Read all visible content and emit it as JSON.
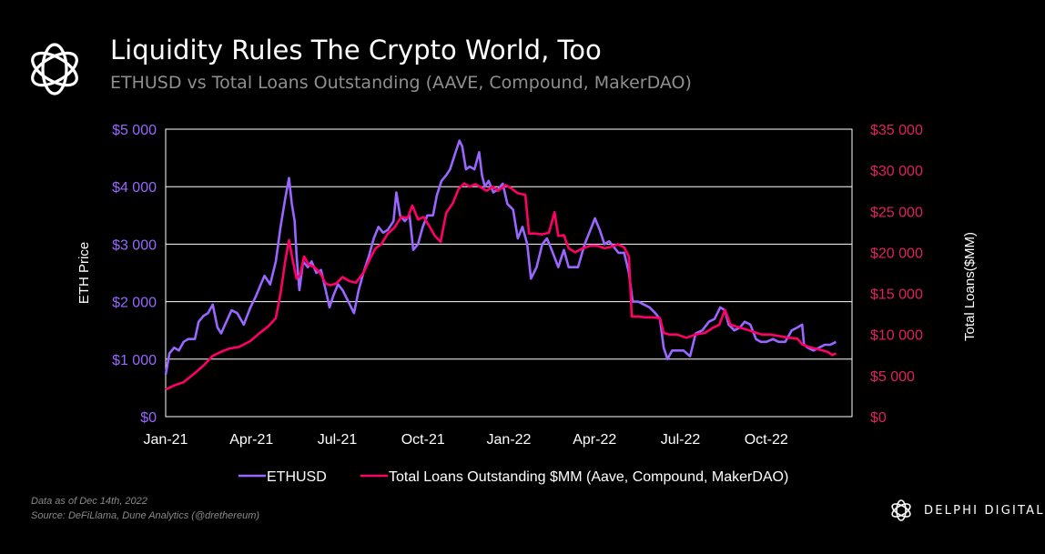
{
  "header": {
    "title": "Liquidity Rules The Crypto World, Too",
    "subtitle": "ETHUSD vs Total Loans Outstanding (AAVE, Compound, MakerDAO)"
  },
  "footer": {
    "note1": "Data as of Dec 14th, 2022",
    "note2": "Source: DeFiLlama,  Dune Analytics (@drethereum)",
    "brand": "DELPHI DIGITAL",
    "brand_icon": "delphi-knot-logo-icon"
  },
  "colors": {
    "ethusd": "#9966ff",
    "loans": "#ff0066",
    "left_axis": "#9966ff",
    "right_axis": "#e0205e",
    "grid": "#ffffff",
    "background": "#000000"
  },
  "chart_data": {
    "type": "line",
    "title": "",
    "xlabel": "",
    "ylabel": "ETH Price",
    "y2label": "Total Loans($MM)",
    "x_tick_labels": [
      "Jan-21",
      "Apr-21",
      "Jul-21",
      "Oct-21",
      "Jan-22",
      "Apr-22",
      "Jul-22",
      "Oct-22"
    ],
    "y_ticks": [
      "$0",
      "$1 000",
      "$2 000",
      "$3 000",
      "$4 000",
      "$5 000"
    ],
    "y2_ticks": [
      "$0",
      "$5 000",
      "$10 000",
      "$15 000",
      "$20 000",
      "$25 000",
      "$30 000",
      "$35 000"
    ],
    "ylim": [
      0,
      5000
    ],
    "y2lim": [
      0,
      35000
    ],
    "xlim": [
      "2021-01-01",
      "2022-12-31"
    ],
    "grid": true,
    "legend_position": "bottom",
    "series": [
      {
        "name": "ETHUSD",
        "axis": "left",
        "points": [
          [
            "2021-01-01",
            730
          ],
          [
            "2021-01-05",
            1100
          ],
          [
            "2021-01-10",
            1200
          ],
          [
            "2021-01-15",
            1150
          ],
          [
            "2021-01-20",
            1300
          ],
          [
            "2021-01-25",
            1350
          ],
          [
            "2021-02-01",
            1350
          ],
          [
            "2021-02-05",
            1650
          ],
          [
            "2021-02-10",
            1750
          ],
          [
            "2021-02-15",
            1800
          ],
          [
            "2021-02-20",
            1950
          ],
          [
            "2021-02-25",
            1550
          ],
          [
            "2021-03-01",
            1450
          ],
          [
            "2021-03-05",
            1600
          ],
          [
            "2021-03-12",
            1850
          ],
          [
            "2021-03-18",
            1800
          ],
          [
            "2021-03-25",
            1600
          ],
          [
            "2021-04-01",
            1900
          ],
          [
            "2021-04-07",
            2100
          ],
          [
            "2021-04-12",
            2300
          ],
          [
            "2021-04-16",
            2450
          ],
          [
            "2021-04-22",
            2300
          ],
          [
            "2021-04-28",
            2700
          ],
          [
            "2021-05-03",
            3300
          ],
          [
            "2021-05-08",
            3800
          ],
          [
            "2021-05-12",
            4150
          ],
          [
            "2021-05-15",
            3700
          ],
          [
            "2021-05-18",
            3400
          ],
          [
            "2021-05-20",
            2800
          ],
          [
            "2021-05-23",
            2200
          ],
          [
            "2021-05-27",
            2700
          ],
          [
            "2021-06-01",
            2600
          ],
          [
            "2021-06-05",
            2700
          ],
          [
            "2021-06-10",
            2500
          ],
          [
            "2021-06-15",
            2550
          ],
          [
            "2021-06-20",
            2200
          ],
          [
            "2021-06-24",
            1900
          ],
          [
            "2021-06-28",
            2100
          ],
          [
            "2021-07-03",
            2300
          ],
          [
            "2021-07-08",
            2200
          ],
          [
            "2021-07-14",
            2000
          ],
          [
            "2021-07-20",
            1800
          ],
          [
            "2021-07-25",
            2200
          ],
          [
            "2021-07-30",
            2500
          ],
          [
            "2021-08-05",
            2800
          ],
          [
            "2021-08-10",
            3100
          ],
          [
            "2021-08-15",
            3300
          ],
          [
            "2021-08-20",
            3200
          ],
          [
            "2021-08-25",
            3250
          ],
          [
            "2021-08-31",
            3400
          ],
          [
            "2021-09-03",
            3900
          ],
          [
            "2021-09-07",
            3500
          ],
          [
            "2021-09-12",
            3400
          ],
          [
            "2021-09-17",
            3500
          ],
          [
            "2021-09-21",
            2900
          ],
          [
            "2021-09-26",
            3000
          ],
          [
            "2021-10-01",
            3300
          ],
          [
            "2021-10-06",
            3500
          ],
          [
            "2021-10-12",
            3500
          ],
          [
            "2021-10-16",
            3850
          ],
          [
            "2021-10-21",
            4100
          ],
          [
            "2021-10-26",
            4200
          ],
          [
            "2021-10-30",
            4300
          ],
          [
            "2021-11-04",
            4550
          ],
          [
            "2021-11-09",
            4800
          ],
          [
            "2021-11-12",
            4700
          ],
          [
            "2021-11-16",
            4300
          ],
          [
            "2021-11-20",
            4350
          ],
          [
            "2021-11-25",
            4300
          ],
          [
            "2021-11-30",
            4600
          ],
          [
            "2021-12-03",
            4200
          ],
          [
            "2021-12-06",
            4000
          ],
          [
            "2021-12-10",
            4100
          ],
          [
            "2021-12-15",
            3900
          ],
          [
            "2021-12-20",
            3950
          ],
          [
            "2021-12-25",
            4050
          ],
          [
            "2021-12-30",
            3700
          ],
          [
            "2022-01-05",
            3600
          ],
          [
            "2022-01-10",
            3100
          ],
          [
            "2022-01-15",
            3300
          ],
          [
            "2022-01-20",
            3000
          ],
          [
            "2022-01-24",
            2400
          ],
          [
            "2022-01-30",
            2600
          ],
          [
            "2022-02-05",
            3000
          ],
          [
            "2022-02-10",
            3100
          ],
          [
            "2022-02-15",
            2900
          ],
          [
            "2022-02-22",
            2600
          ],
          [
            "2022-02-28",
            2900
          ],
          [
            "2022-03-05",
            2600
          ],
          [
            "2022-03-10",
            2600
          ],
          [
            "2022-03-15",
            2600
          ],
          [
            "2022-03-22",
            3000
          ],
          [
            "2022-03-27",
            3200
          ],
          [
            "2022-04-02",
            3450
          ],
          [
            "2022-04-07",
            3250
          ],
          [
            "2022-04-12",
            3000
          ],
          [
            "2022-04-17",
            3050
          ],
          [
            "2022-04-22",
            2950
          ],
          [
            "2022-04-27",
            2850
          ],
          [
            "2022-05-03",
            2850
          ],
          [
            "2022-05-08",
            2500
          ],
          [
            "2022-05-12",
            2000
          ],
          [
            "2022-05-18",
            2000
          ],
          [
            "2022-05-24",
            1950
          ],
          [
            "2022-05-30",
            1900
          ],
          [
            "2022-06-05",
            1800
          ],
          [
            "2022-06-10",
            1700
          ],
          [
            "2022-06-14",
            1200
          ],
          [
            "2022-06-18",
            1000
          ],
          [
            "2022-06-23",
            1150
          ],
          [
            "2022-06-28",
            1150
          ],
          [
            "2022-07-05",
            1150
          ],
          [
            "2022-07-12",
            1050
          ],
          [
            "2022-07-18",
            1450
          ],
          [
            "2022-07-25",
            1500
          ],
          [
            "2022-08-01",
            1650
          ],
          [
            "2022-08-07",
            1700
          ],
          [
            "2022-08-13",
            1900
          ],
          [
            "2022-08-18",
            1850
          ],
          [
            "2022-08-22",
            1600
          ],
          [
            "2022-08-28",
            1500
          ],
          [
            "2022-09-03",
            1550
          ],
          [
            "2022-09-08",
            1650
          ],
          [
            "2022-09-14",
            1600
          ],
          [
            "2022-09-20",
            1350
          ],
          [
            "2022-09-25",
            1300
          ],
          [
            "2022-10-01",
            1300
          ],
          [
            "2022-10-08",
            1350
          ],
          [
            "2022-10-14",
            1300
          ],
          [
            "2022-10-21",
            1300
          ],
          [
            "2022-10-28",
            1500
          ],
          [
            "2022-11-03",
            1550
          ],
          [
            "2022-11-08",
            1600
          ],
          [
            "2022-11-10",
            1250
          ],
          [
            "2022-11-14",
            1200
          ],
          [
            "2022-11-20",
            1150
          ],
          [
            "2022-11-26",
            1200
          ],
          [
            "2022-12-02",
            1250
          ],
          [
            "2022-12-08",
            1250
          ],
          [
            "2022-12-14",
            1300
          ]
        ]
      },
      {
        "name": "Total Loans Outstanding $MM (Aave, Compound, MakerDAO)",
        "axis": "right",
        "points": [
          [
            "2021-01-01",
            3300
          ],
          [
            "2021-01-10",
            3800
          ],
          [
            "2021-01-20",
            4200
          ],
          [
            "2021-02-01",
            5300
          ],
          [
            "2021-02-10",
            6200
          ],
          [
            "2021-02-20",
            7400
          ],
          [
            "2021-03-01",
            7900
          ],
          [
            "2021-03-10",
            8300
          ],
          [
            "2021-03-20",
            8500
          ],
          [
            "2021-04-01",
            9200
          ],
          [
            "2021-04-10",
            10100
          ],
          [
            "2021-04-20",
            11000
          ],
          [
            "2021-04-28",
            12000
          ],
          [
            "2021-05-03",
            15000
          ],
          [
            "2021-05-08",
            19000
          ],
          [
            "2021-05-12",
            21500
          ],
          [
            "2021-05-16",
            19000
          ],
          [
            "2021-05-20",
            16800
          ],
          [
            "2021-05-24",
            17300
          ],
          [
            "2021-05-28",
            19500
          ],
          [
            "2021-06-02",
            18500
          ],
          [
            "2021-06-08",
            18200
          ],
          [
            "2021-06-14",
            17500
          ],
          [
            "2021-06-20",
            16200
          ],
          [
            "2021-06-25",
            16000
          ],
          [
            "2021-07-01",
            16200
          ],
          [
            "2021-07-08",
            17000
          ],
          [
            "2021-07-15",
            16500
          ],
          [
            "2021-07-22",
            16300
          ],
          [
            "2021-07-30",
            17500
          ],
          [
            "2021-08-06",
            19200
          ],
          [
            "2021-08-12",
            20500
          ],
          [
            "2021-08-18",
            21000
          ],
          [
            "2021-08-25",
            22300
          ],
          [
            "2021-09-01",
            23000
          ],
          [
            "2021-09-08",
            24300
          ],
          [
            "2021-09-15",
            24200
          ],
          [
            "2021-09-20",
            25700
          ],
          [
            "2021-09-26",
            24000
          ],
          [
            "2021-10-02",
            24300
          ],
          [
            "2021-10-08",
            23200
          ],
          [
            "2021-10-14",
            22000
          ],
          [
            "2021-10-20",
            21300
          ],
          [
            "2021-10-26",
            24800
          ],
          [
            "2021-11-02",
            26000
          ],
          [
            "2021-11-08",
            27700
          ],
          [
            "2021-11-14",
            28400
          ],
          [
            "2021-11-20",
            28000
          ],
          [
            "2021-11-26",
            28300
          ],
          [
            "2021-12-02",
            27900
          ],
          [
            "2021-12-08",
            27500
          ],
          [
            "2021-12-14",
            28000
          ],
          [
            "2021-12-20",
            27500
          ],
          [
            "2021-12-28",
            28200
          ],
          [
            "2022-01-03",
            27800
          ],
          [
            "2022-01-10",
            27200
          ],
          [
            "2022-01-18",
            27000
          ],
          [
            "2022-01-22",
            22300
          ],
          [
            "2022-01-28",
            22300
          ],
          [
            "2022-02-05",
            22200
          ],
          [
            "2022-02-12",
            22400
          ],
          [
            "2022-02-18",
            24900
          ],
          [
            "2022-02-22",
            22000
          ],
          [
            "2022-02-28",
            22100
          ],
          [
            "2022-03-05",
            20500
          ],
          [
            "2022-03-12",
            20000
          ],
          [
            "2022-03-20",
            20500
          ],
          [
            "2022-03-28",
            20800
          ],
          [
            "2022-04-05",
            20800
          ],
          [
            "2022-04-12",
            20500
          ],
          [
            "2022-04-20",
            20700
          ],
          [
            "2022-04-26",
            21000
          ],
          [
            "2022-05-03",
            20600
          ],
          [
            "2022-05-08",
            19500
          ],
          [
            "2022-05-11",
            12200
          ],
          [
            "2022-05-18",
            12200
          ],
          [
            "2022-05-25",
            12100
          ],
          [
            "2022-06-01",
            12100
          ],
          [
            "2022-06-10",
            12000
          ],
          [
            "2022-06-14",
            10200
          ],
          [
            "2022-06-20",
            10000
          ],
          [
            "2022-06-28",
            10000
          ],
          [
            "2022-07-08",
            9600
          ],
          [
            "2022-07-18",
            10000
          ],
          [
            "2022-07-28",
            10200
          ],
          [
            "2022-08-05",
            10800
          ],
          [
            "2022-08-12",
            11200
          ],
          [
            "2022-08-18",
            13000
          ],
          [
            "2022-08-24",
            11200
          ],
          [
            "2022-09-01",
            10900
          ],
          [
            "2022-09-10",
            10600
          ],
          [
            "2022-09-18",
            10300
          ],
          [
            "2022-09-26",
            10000
          ],
          [
            "2022-10-05",
            10000
          ],
          [
            "2022-10-15",
            9800
          ],
          [
            "2022-10-25",
            9600
          ],
          [
            "2022-11-03",
            9500
          ],
          [
            "2022-11-08",
            8800
          ],
          [
            "2022-11-15",
            8500
          ],
          [
            "2022-11-25",
            8200
          ],
          [
            "2022-12-05",
            7900
          ],
          [
            "2022-12-10",
            7500
          ],
          [
            "2022-12-14",
            7700
          ]
        ]
      }
    ]
  }
}
